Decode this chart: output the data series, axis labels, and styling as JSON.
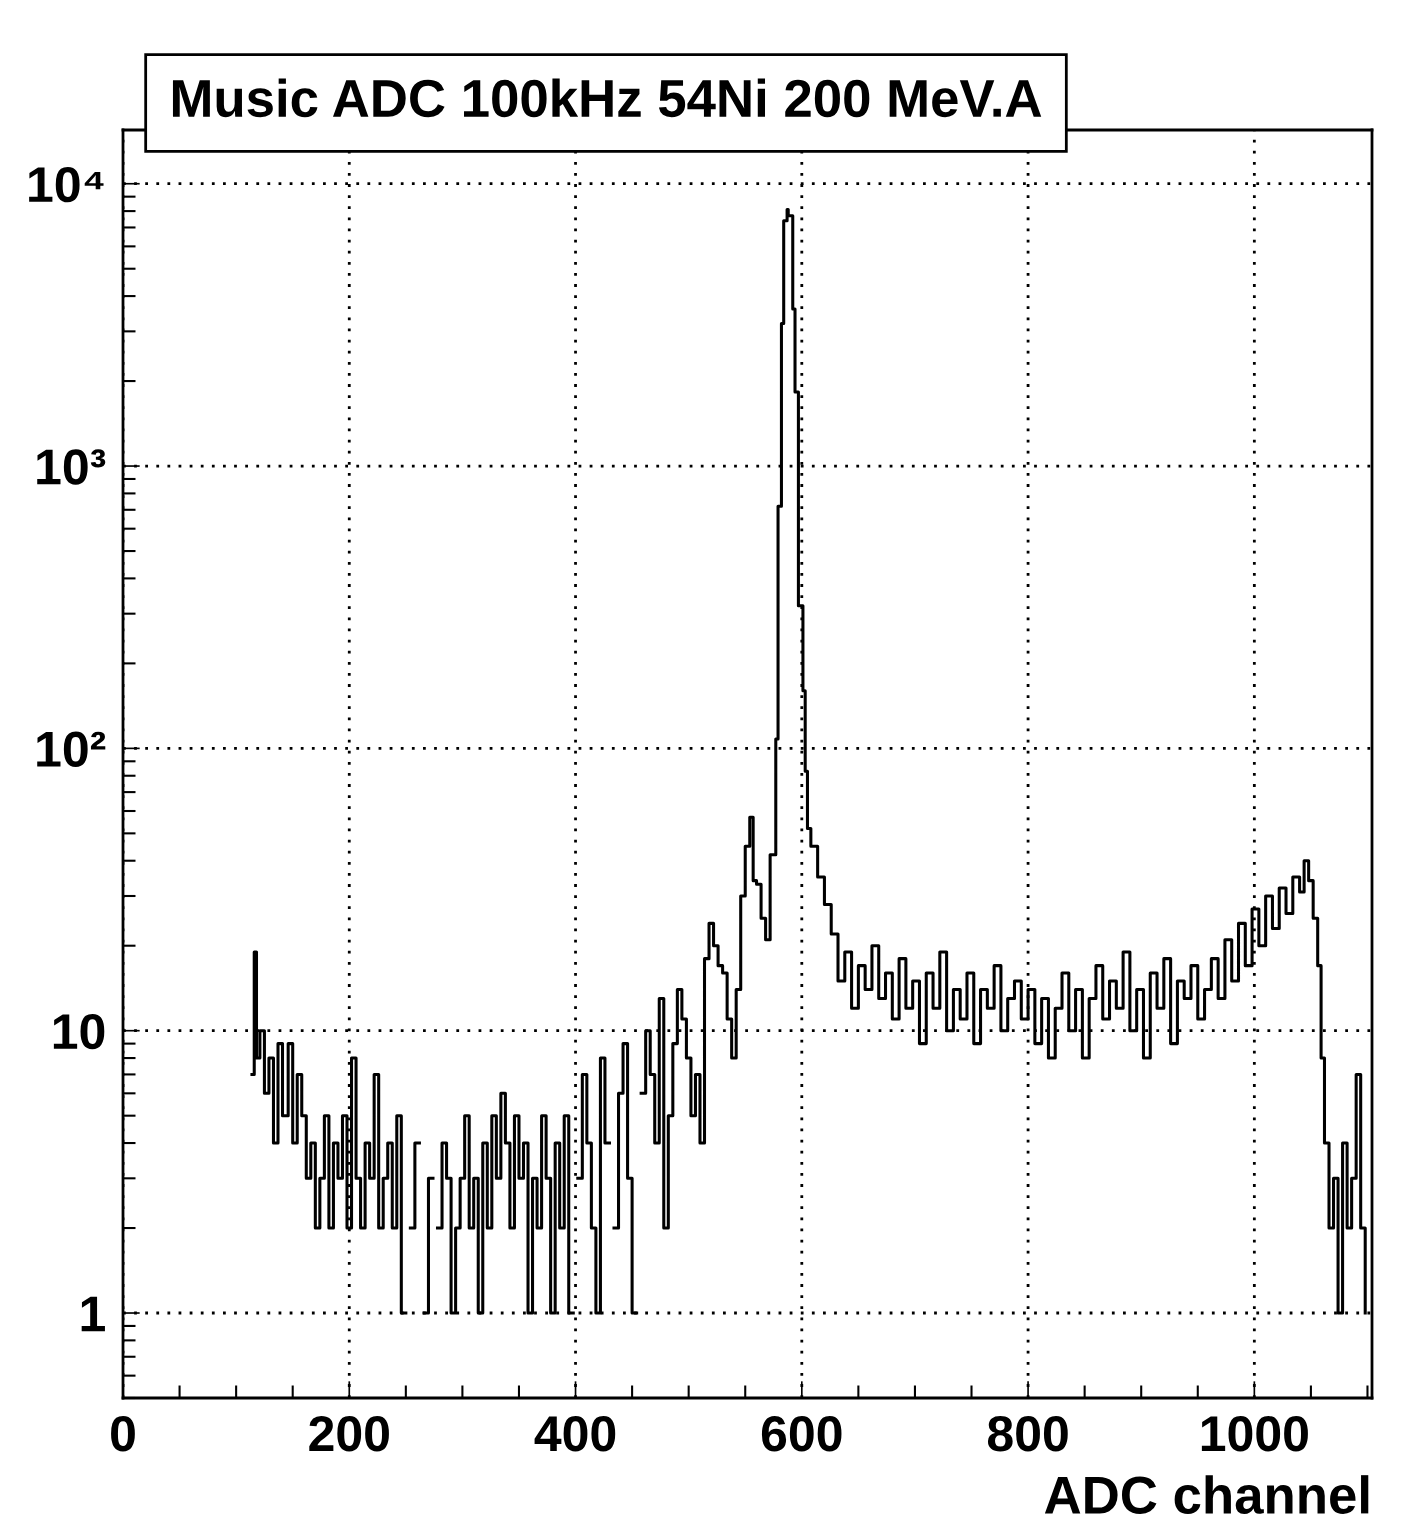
{
  "chart_data": {
    "type": "step",
    "title": "Music ADC 100kHz 54Ni 200 MeV.A",
    "xlabel": "ADC channel",
    "color": "#000000",
    "log": "y",
    "grid": true,
    "line_style": "solid",
    "xlim": [
      0,
      1104
    ],
    "ylim": [
      0.5,
      15500
    ],
    "xticks": [
      0,
      200,
      400,
      600,
      800,
      1000
    ],
    "yticks": [
      1,
      10,
      {
        "value": 100,
        "label": "10²"
      },
      {
        "value": 1000,
        "label": "10³"
      },
      {
        "value": 10000,
        "label": "10⁴"
      }
    ],
    "x": [
      114,
      116,
      118,
      121,
      125,
      129,
      133,
      137,
      141,
      146,
      150,
      154,
      158,
      162,
      166,
      170,
      174,
      178,
      182,
      186,
      190,
      194,
      198,
      202,
      206,
      210,
      214,
      218,
      222,
      226,
      230,
      234,
      238,
      242,
      246,
      250,
      254,
      258,
      262,
      266,
      270,
      274,
      278,
      282,
      286,
      290,
      294,
      298,
      302,
      306,
      310,
      314,
      318,
      322,
      326,
      330,
      334,
      338,
      342,
      346,
      350,
      354,
      358,
      362,
      366,
      370,
      374,
      378,
      382,
      386,
      390,
      394,
      398,
      402,
      406,
      410,
      414,
      418,
      422,
      426,
      430,
      434,
      438,
      442,
      446,
      450,
      454,
      458,
      462,
      466,
      470,
      474,
      478,
      482,
      486,
      490,
      494,
      498,
      502,
      506,
      510,
      514,
      518,
      522,
      526,
      530,
      534,
      538,
      542,
      546,
      550,
      554,
      557,
      560,
      564,
      568,
      572,
      577,
      579,
      582,
      584,
      587,
      588,
      592,
      594,
      597,
      601,
      603,
      605,
      608,
      614,
      620,
      626,
      632,
      638,
      644,
      650,
      656,
      662,
      668,
      674,
      680,
      686,
      692,
      698,
      704,
      710,
      716,
      722,
      728,
      734,
      740,
      746,
      752,
      758,
      764,
      770,
      776,
      782,
      788,
      794,
      800,
      806,
      812,
      818,
      824,
      830,
      836,
      842,
      848,
      854,
      860,
      866,
      872,
      878,
      884,
      890,
      896,
      902,
      908,
      914,
      920,
      926,
      932,
      938,
      944,
      950,
      956,
      962,
      968,
      974,
      980,
      986,
      992,
      998,
      1004,
      1010,
      1016,
      1022,
      1028,
      1034,
      1040,
      1044,
      1048,
      1052,
      1056,
      1059,
      1062,
      1066,
      1070,
      1074,
      1078,
      1082,
      1086,
      1090,
      1094,
      1098
    ],
    "values": [
      7,
      19,
      8,
      10,
      6,
      8,
      4,
      9,
      5,
      9,
      4,
      7,
      5,
      3,
      4,
      2,
      3,
      5,
      2,
      4,
      3,
      5,
      2,
      8,
      3,
      2,
      4,
      3,
      7,
      2,
      3,
      4,
      2,
      5,
      1,
      null,
      2,
      4,
      null,
      1,
      3,
      null,
      2,
      4,
      3,
      1,
      2,
      3,
      5,
      2,
      3,
      1,
      4,
      2,
      5,
      3,
      6,
      4,
      2,
      5,
      3,
      4,
      1,
      3,
      2,
      5,
      3,
      1,
      4,
      2,
      5,
      1,
      null,
      3,
      7,
      4,
      2,
      1,
      8,
      4,
      null,
      2,
      6,
      9,
      3,
      1,
      null,
      6,
      10,
      7,
      4,
      13,
      2,
      5,
      9,
      14,
      11,
      8,
      5,
      7,
      4,
      18,
      24,
      20,
      17,
      16,
      11,
      8,
      14,
      30,
      45,
      57,
      34,
      33,
      25,
      21,
      42,
      108,
      720,
      3200,
      7400,
      8100,
      7700,
      3600,
      1830,
      320,
      160,
      83,
      52,
      45,
      35,
      28,
      22,
      15,
      19,
      12,
      17,
      14,
      20,
      13,
      16,
      11,
      18,
      12,
      15,
      9,
      16,
      12,
      19,
      10,
      14,
      11,
      16,
      9,
      14,
      12,
      17,
      10,
      13,
      15,
      11,
      14,
      9,
      13,
      8,
      12,
      16,
      10,
      14,
      8,
      13,
      17,
      11,
      15,
      12,
      19,
      10,
      14,
      8,
      16,
      12,
      18,
      9,
      15,
      13,
      17,
      11,
      14,
      18,
      13,
      21,
      15,
      24,
      17,
      27,
      20,
      30,
      23,
      32,
      26,
      35,
      31,
      40,
      34,
      25,
      17,
      8,
      4,
      2,
      3,
      1,
      4,
      2,
      3,
      7,
      2,
      1
    ]
  }
}
